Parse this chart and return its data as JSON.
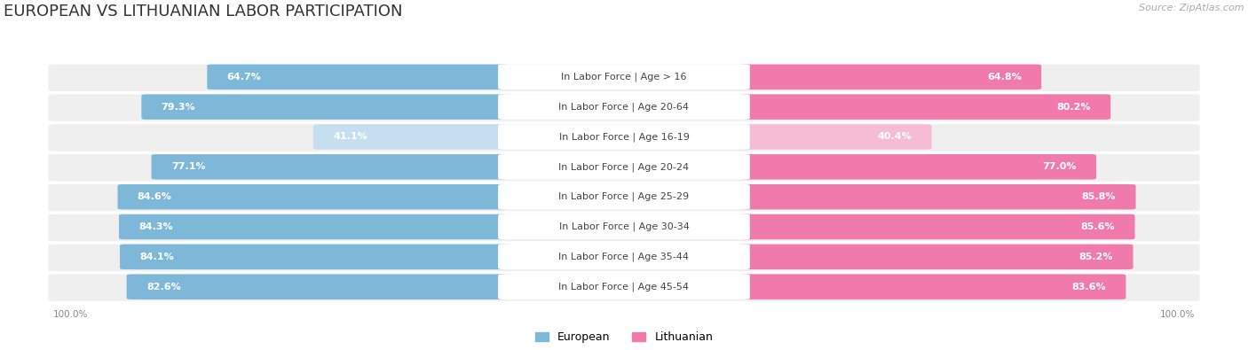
{
  "title": "EUROPEAN VS LITHUANIAN LABOR PARTICIPATION",
  "source": "Source: ZipAtlas.com",
  "categories": [
    "In Labor Force | Age > 16",
    "In Labor Force | Age 20-64",
    "In Labor Force | Age 16-19",
    "In Labor Force | Age 20-24",
    "In Labor Force | Age 25-29",
    "In Labor Force | Age 30-34",
    "In Labor Force | Age 35-44",
    "In Labor Force | Age 45-54"
  ],
  "european_values": [
    64.7,
    79.3,
    41.1,
    77.1,
    84.6,
    84.3,
    84.1,
    82.6
  ],
  "lithuanian_values": [
    64.8,
    80.2,
    40.4,
    77.0,
    85.8,
    85.6,
    85.2,
    83.6
  ],
  "european_color": "#7eb8d9",
  "european_light_color": "#c5dff0",
  "lithuanian_color": "#f07aab",
  "lithuanian_light_color": "#f7bcd5",
  "bar_bg_color": "#efefef",
  "max_value": 100.0,
  "title_fontsize": 13,
  "label_fontsize": 8.0,
  "value_fontsize": 8.0,
  "legend_fontsize": 9
}
